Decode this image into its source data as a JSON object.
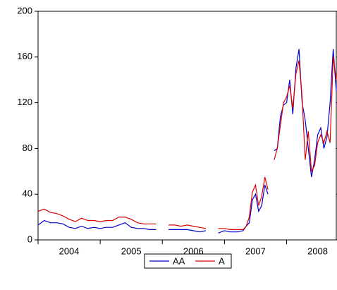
{
  "chart_data": {
    "type": "line",
    "x": [
      2004.0,
      2004.1,
      2004.2,
      2004.3,
      2004.4,
      2004.5,
      2004.6,
      2004.7,
      2004.8,
      2004.9,
      2005.0,
      2005.1,
      2005.2,
      2005.3,
      2005.4,
      2005.5,
      2005.6,
      2005.7,
      2005.8,
      2005.9,
      2006.0,
      2006.1,
      2006.2,
      2006.3,
      2006.4,
      2006.5,
      2006.6,
      2006.7,
      2006.8,
      2006.9,
      2007.0,
      2007.1,
      2007.2,
      2007.3,
      2007.35,
      2007.4,
      2007.45,
      2007.5,
      2007.55,
      2007.6,
      2007.65,
      2007.7,
      2007.75,
      2007.8,
      2007.85,
      2007.9,
      2007.95,
      2008.0,
      2008.05,
      2008.1,
      2008.15,
      2008.2,
      2008.25,
      2008.3,
      2008.35,
      2008.4,
      2008.45,
      2008.5,
      2008.55,
      2008.6,
      2008.65,
      2008.7,
      2008.75,
      2008.8
    ],
    "series": [
      {
        "name": "AA",
        "color": "#0000cc",
        "values": [
          13,
          17,
          15,
          15,
          14,
          11,
          10,
          12,
          10,
          11,
          10,
          11,
          11,
          13,
          15,
          11,
          10,
          10,
          9,
          9,
          null,
          9,
          9,
          9,
          9,
          8,
          7,
          8,
          null,
          6,
          8,
          7,
          7,
          8,
          12,
          15,
          35,
          40,
          25,
          30,
          48,
          40,
          null,
          78,
          80,
          108,
          118,
          120,
          140,
          110,
          150,
          167,
          120,
          105,
          80,
          55,
          70,
          92,
          98,
          80,
          90,
          120,
          167,
          130
        ]
      },
      {
        "name": "A",
        "color": "#e00000",
        "values": [
          25,
          27,
          24,
          23,
          21,
          18,
          16,
          19,
          17,
          17,
          16,
          17,
          17,
          20,
          20,
          18,
          15,
          14,
          14,
          14,
          null,
          13,
          13,
          12,
          13,
          12,
          11,
          10,
          null,
          10,
          10,
          9,
          9,
          9,
          12,
          20,
          42,
          48,
          30,
          38,
          55,
          44,
          null,
          70,
          80,
          100,
          120,
          125,
          135,
          115,
          145,
          157,
          125,
          70,
          95,
          60,
          65,
          85,
          92,
          85,
          95,
          85,
          160,
          140
        ]
      }
    ],
    "xlim": [
      2004,
      2008.8
    ],
    "xticks": [
      {
        "value": 2004.5,
        "label": "2004"
      },
      {
        "value": 2005.5,
        "label": "2005"
      },
      {
        "value": 2006.5,
        "label": "2006"
      },
      {
        "value": 2007.5,
        "label": "2007"
      },
      {
        "value": 2008.5,
        "label": "2008"
      }
    ],
    "ylim": [
      0,
      200
    ],
    "yticks": [
      0,
      40,
      80,
      120,
      160,
      200
    ]
  }
}
